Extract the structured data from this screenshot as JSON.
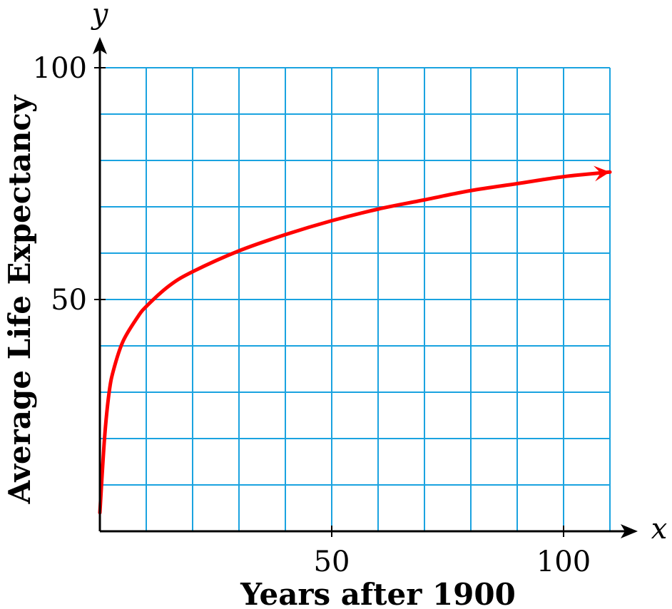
{
  "chart_data": {
    "type": "line",
    "xlabel": "Years after 1900",
    "ylabel": "Average Life Expectancy",
    "x_var": "x",
    "y_var": "y",
    "xlim": [
      0,
      110
    ],
    "ylim": [
      0,
      100
    ],
    "x_ticks": [
      50,
      100
    ],
    "y_ticks": [
      50,
      100
    ],
    "x_tick_labels": [
      "50",
      "100"
    ],
    "y_tick_labels": [
      "50",
      "100"
    ],
    "grid": true,
    "grid_step_x": 10,
    "grid_step_y": 10,
    "grid_color": "#1aa3e0",
    "series": [
      {
        "color": "#ff0000",
        "arrow_end": true,
        "x": [
          0,
          1,
          2,
          3,
          5,
          8,
          10,
          15,
          20,
          30,
          40,
          50,
          60,
          70,
          80,
          90,
          100,
          110
        ],
        "y": [
          4,
          20,
          30,
          35,
          41,
          46,
          48.5,
          53,
          56,
          60.5,
          64,
          67,
          69.5,
          71.5,
          73.5,
          75,
          76.5,
          77.5
        ]
      }
    ]
  }
}
